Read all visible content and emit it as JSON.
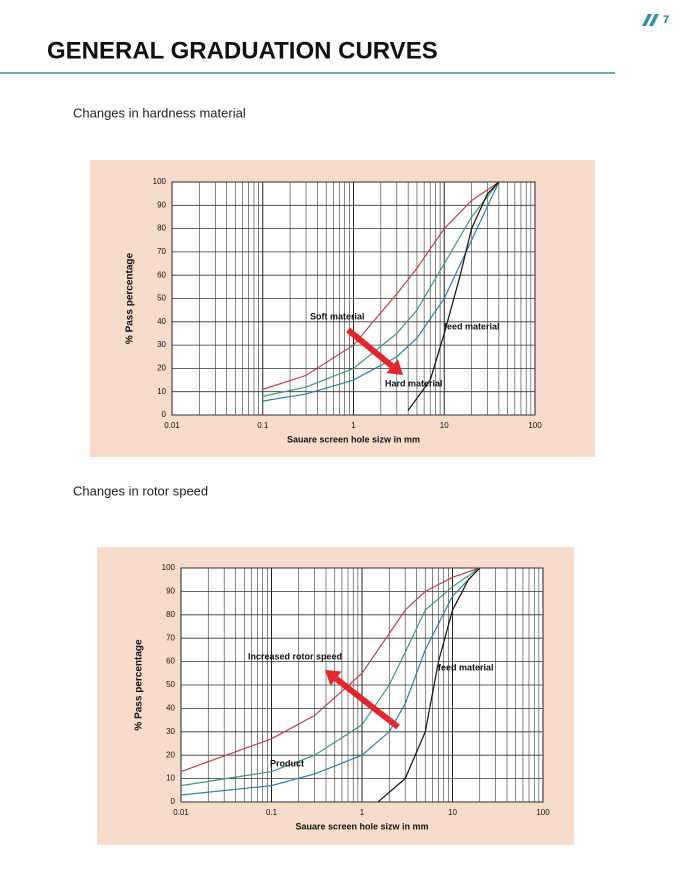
{
  "header": {
    "title": "GENERAL GRADUATION CURVES",
    "page": "7"
  },
  "sections": [
    {
      "label": "Changes in hardness material"
    },
    {
      "label": "Changes in rotor speed"
    }
  ],
  "chart_data": [
    {
      "type": "line",
      "xlabel": "Sauare screen hole sizw in mm",
      "ylabel": "% Pass percentage",
      "xscale": "log",
      "grid": true,
      "xlim": [
        0.01,
        100
      ],
      "ylim": [
        0,
        100
      ],
      "xticks": [
        0.01,
        0.1,
        1,
        10,
        100
      ],
      "yticks": [
        0,
        10,
        20,
        30,
        40,
        50,
        60,
        70,
        80,
        90,
        100
      ],
      "annotations": [
        "Soft material",
        "Hard material",
        "feed material"
      ],
      "series": [
        {
          "color": "#b8434a",
          "x": [
            0.1,
            0.3,
            1,
            3,
            5,
            10,
            20,
            40
          ],
          "values": [
            11,
            17,
            30,
            52,
            63,
            80,
            92,
            100
          ]
        },
        {
          "color": "#3f9a6e",
          "x": [
            0.1,
            0.3,
            1,
            3,
            5,
            10,
            20,
            40
          ],
          "values": [
            8,
            12,
            20,
            35,
            45,
            65,
            85,
            100
          ]
        },
        {
          "color": "#2f7f9e",
          "x": [
            0.1,
            0.3,
            1,
            3,
            5,
            10,
            20,
            40
          ],
          "values": [
            6,
            9,
            15,
            25,
            33,
            50,
            75,
            100
          ]
        },
        {
          "color": "#111111",
          "x": [
            4,
            7,
            10,
            15,
            20,
            30,
            40
          ],
          "values": [
            2,
            15,
            35,
            60,
            80,
            95,
            100
          ]
        }
      ]
    },
    {
      "type": "line",
      "xlabel": "Sauare screen hole sizw in mm",
      "ylabel": "% Pass percentage",
      "xscale": "log",
      "grid": true,
      "xlim": [
        0.01,
        100
      ],
      "ylim": [
        0,
        100
      ],
      "xticks": [
        0.01,
        0.1,
        1,
        10,
        100
      ],
      "yticks": [
        0,
        10,
        20,
        30,
        40,
        50,
        60,
        70,
        80,
        90,
        100
      ],
      "annotations": [
        "Increased rotor speed",
        "feed material",
        "Product"
      ],
      "series": [
        {
          "color": "#b8434a",
          "x": [
            0.01,
            0.1,
            0.3,
            1,
            2,
            3,
            5,
            10,
            20
          ],
          "values": [
            13,
            27,
            37,
            55,
            72,
            82,
            90,
            96,
            100
          ]
        },
        {
          "color": "#3f9a6e",
          "x": [
            0.01,
            0.1,
            0.3,
            1,
            2,
            3,
            5,
            10,
            20
          ],
          "values": [
            7,
            13,
            20,
            33,
            50,
            64,
            82,
            92,
            100
          ]
        },
        {
          "color": "#2f7f9e",
          "x": [
            0.01,
            0.1,
            0.3,
            1,
            2,
            3,
            5,
            10,
            20
          ],
          "values": [
            3,
            7,
            12,
            20,
            30,
            42,
            65,
            88,
            100
          ]
        },
        {
          "color": "#111111",
          "x": [
            1.5,
            3,
            5,
            7,
            10,
            15,
            20
          ],
          "values": [
            0,
            10,
            30,
            60,
            82,
            95,
            100
          ]
        }
      ]
    }
  ]
}
